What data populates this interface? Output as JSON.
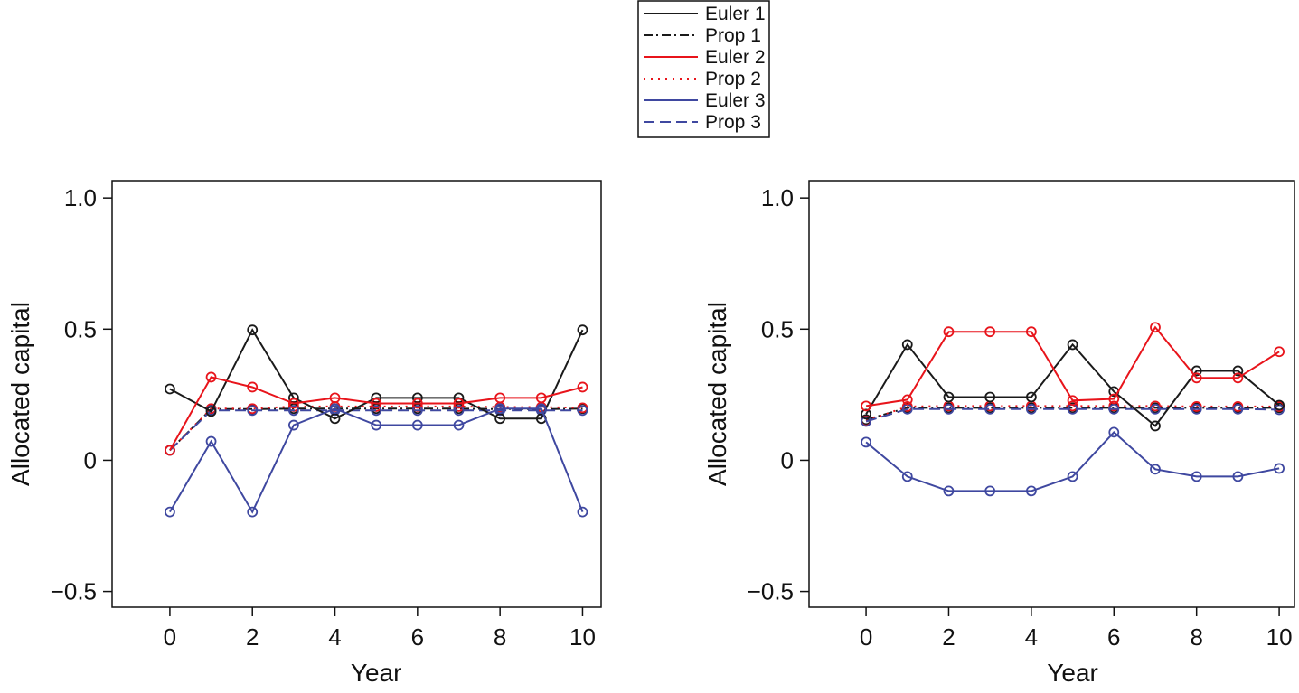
{
  "legend": {
    "placement": "top-center",
    "entries": [
      {
        "label": "Euler 1",
        "color": "#1a1a1a",
        "dash": "solid"
      },
      {
        "label": "Prop 1",
        "color": "#1a1a1a",
        "dash": "dotdash"
      },
      {
        "label": "Euler 2",
        "color": "#e8141b",
        "dash": "solid"
      },
      {
        "label": "Prop 2",
        "color": "#e8141b",
        "dash": "dotted"
      },
      {
        "label": "Euler 3",
        "color": "#3f48a0",
        "dash": "solid"
      },
      {
        "label": "Prop 3",
        "color": "#3f48a0",
        "dash": "dashed"
      }
    ]
  },
  "chart_data": [
    {
      "type": "line",
      "xlabel": "Year",
      "ylabel": "Allocated capital",
      "xlim": [
        -1.4,
        10.45
      ],
      "ylim": [
        -0.56,
        1.066
      ],
      "xticks": [
        0,
        2,
        4,
        6,
        8,
        10
      ],
      "xtick_labels": [
        "0",
        "2",
        "4",
        "6",
        "8",
        "10"
      ],
      "yticks": [
        1.0,
        0.5,
        0,
        -0.5
      ],
      "ytick_labels": [
        "1.0",
        "0.5",
        "0",
        "−0.5"
      ],
      "grid": false,
      "x": [
        0,
        1,
        2,
        3,
        4,
        5,
        6,
        7,
        8,
        9,
        10
      ],
      "series": [
        {
          "name": "Euler 1",
          "values": [
            0.272,
            0.186,
            0.497,
            0.238,
            0.159,
            0.238,
            0.238,
            0.238,
            0.159,
            0.159,
            0.497
          ]
        },
        {
          "name": "Prop 1",
          "values": [
            0.038,
            0.195,
            0.195,
            0.197,
            0.197,
            0.197,
            0.197,
            0.197,
            0.195,
            0.195,
            0.197
          ]
        },
        {
          "name": "Euler 2",
          "values": [
            0.038,
            0.317,
            0.279,
            0.217,
            0.238,
            0.217,
            0.217,
            0.217,
            0.238,
            0.238,
            0.279
          ]
        },
        {
          "name": "Prop 2",
          "values": [
            0.038,
            0.197,
            0.197,
            0.205,
            0.205,
            0.205,
            0.205,
            0.205,
            0.203,
            0.203,
            0.2
          ]
        },
        {
          "name": "Euler 3",
          "values": [
            -0.197,
            0.072,
            -0.197,
            0.134,
            0.197,
            0.134,
            0.134,
            0.134,
            0.197,
            0.197,
            -0.197
          ]
        },
        {
          "name": "Prop 3",
          "values": [
            0.038,
            0.19,
            0.19,
            0.19,
            0.19,
            0.19,
            0.19,
            0.19,
            0.19,
            0.19,
            0.19
          ]
        }
      ]
    },
    {
      "type": "line",
      "xlabel": "Year",
      "ylabel": "Allocated capital",
      "xlim": [
        -1.38,
        10.37
      ],
      "ylim": [
        -0.56,
        1.066
      ],
      "xticks": [
        0,
        2,
        4,
        6,
        8,
        10
      ],
      "xtick_labels": [
        "0",
        "2",
        "4",
        "6",
        "8",
        "10"
      ],
      "yticks": [
        1.0,
        0.5,
        0,
        -0.5
      ],
      "ytick_labels": [
        "1.0",
        "0.5",
        "0",
        "−0.5"
      ],
      "grid": false,
      "x": [
        0,
        1,
        2,
        3,
        4,
        5,
        6,
        7,
        8,
        9,
        10
      ],
      "series": [
        {
          "name": "Euler 1",
          "values": [
            0.176,
            0.441,
            0.241,
            0.241,
            0.241,
            0.441,
            0.262,
            0.131,
            0.341,
            0.341,
            0.21
          ]
        },
        {
          "name": "Prop 1",
          "values": [
            0.155,
            0.2,
            0.2,
            0.2,
            0.2,
            0.2,
            0.2,
            0.2,
            0.2,
            0.2,
            0.2
          ]
        },
        {
          "name": "Euler 2",
          "values": [
            0.207,
            0.231,
            0.49,
            0.49,
            0.49,
            0.228,
            0.234,
            0.507,
            0.314,
            0.314,
            0.414
          ]
        },
        {
          "name": "Prop 2",
          "values": [
            0.15,
            0.205,
            0.207,
            0.207,
            0.207,
            0.207,
            0.207,
            0.207,
            0.205,
            0.205,
            0.205
          ]
        },
        {
          "name": "Euler 3",
          "values": [
            0.069,
            -0.062,
            -0.117,
            -0.117,
            -0.117,
            -0.062,
            0.107,
            -0.034,
            -0.062,
            -0.062,
            -0.031
          ]
        },
        {
          "name": "Prop 3",
          "values": [
            0.148,
            0.195,
            0.195,
            0.195,
            0.195,
            0.195,
            0.195,
            0.195,
            0.195,
            0.195,
            0.193
          ]
        }
      ]
    }
  ]
}
